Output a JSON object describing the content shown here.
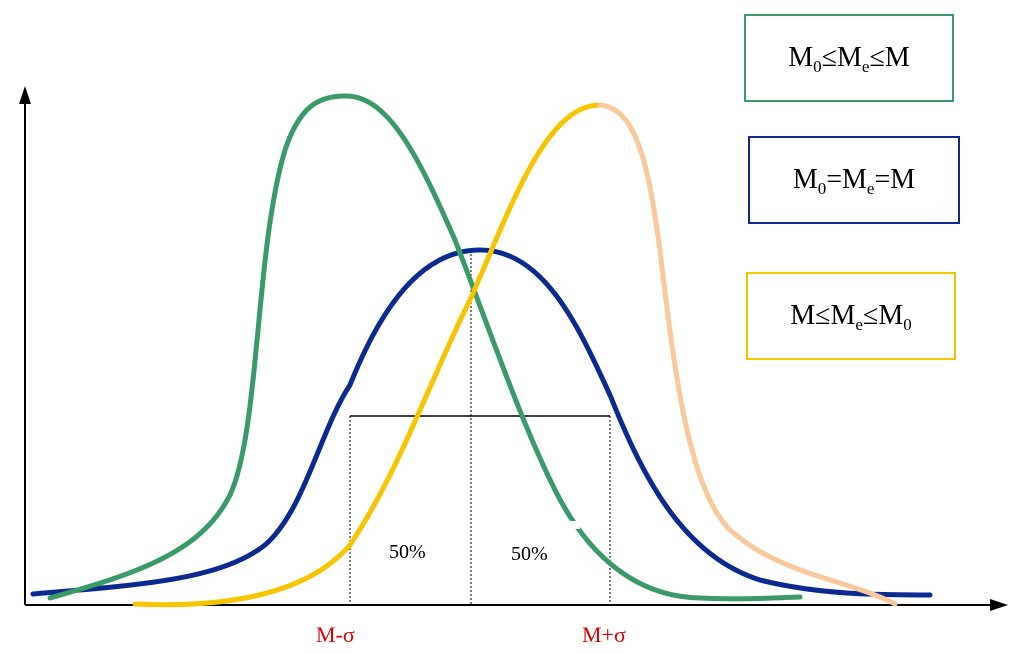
{
  "colors": {
    "green": "#3a9a68",
    "blue": "#0b2a8f",
    "yellow": "#f7c400",
    "peach": "#f9c89b",
    "axis": "#000000",
    "red_label": "#dd0000"
  },
  "legend": [
    {
      "id": "green",
      "text": "M≤M≤M",
      "parts": [
        [
          "M",
          "0"
        ],
        [
          "≤M",
          "e"
        ],
        [
          "≤M",
          ""
        ]
      ]
    },
    {
      "id": "blue",
      "text": "M=M=M",
      "parts": [
        [
          "M",
          "0"
        ],
        [
          "=M",
          "e"
        ],
        [
          "=M",
          ""
        ]
      ]
    },
    {
      "id": "yellow",
      "text": "M≤M≤M",
      "parts": [
        [
          "M",
          ""
        ],
        [
          "≤M",
          "e"
        ],
        [
          "≤M",
          "0"
        ]
      ]
    }
  ],
  "labels": {
    "left_sigma": "M-σ",
    "right_sigma": "M+σ",
    "pct_left": "50%",
    "pct_right": "50%"
  }
}
